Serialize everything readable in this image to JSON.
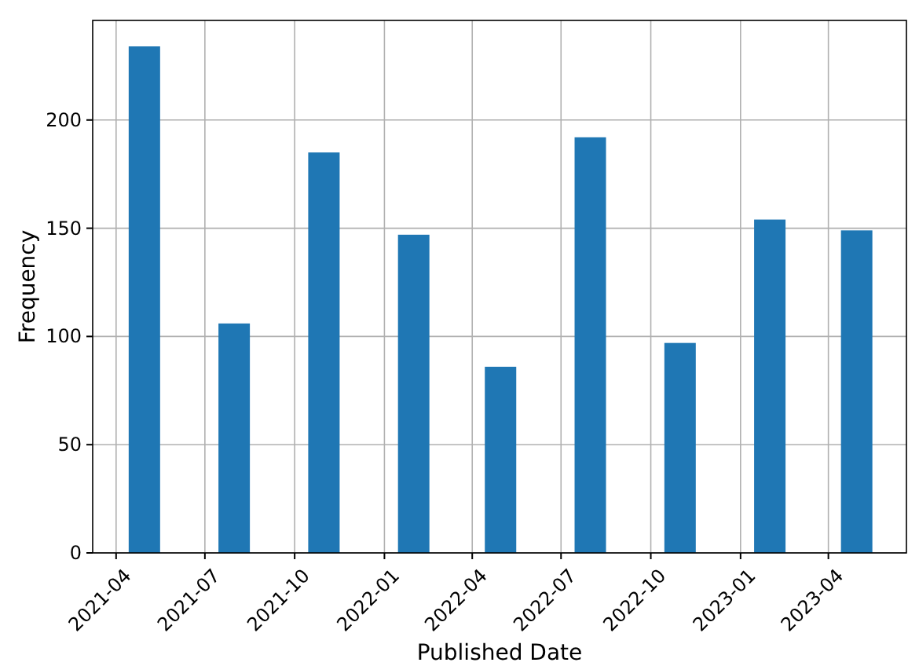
{
  "chart_data": {
    "type": "bar",
    "xlabel": "Published Date",
    "ylabel": "Frequency",
    "x": [
      "2021-04-30",
      "2021-07-31",
      "2021-10-31",
      "2022-01-31",
      "2022-04-30",
      "2022-07-31",
      "2022-10-31",
      "2023-01-31",
      "2023-04-30"
    ],
    "series": [
      {
        "color": "#1f77b4",
        "values": [
          234,
          106,
          185,
          147,
          86,
          192,
          97,
          154,
          149
        ]
      }
    ],
    "xlim": [
      "2021-03-08",
      "2023-06-20"
    ],
    "xticks": [
      "2021-04",
      "2021-07",
      "2021-10",
      "2022-01",
      "2022-04",
      "2022-07",
      "2022-10",
      "2023-01",
      "2023-04"
    ],
    "ylim": [
      0,
      246
    ],
    "yticks": [
      0,
      50,
      100,
      150,
      200
    ],
    "grid": true
  }
}
